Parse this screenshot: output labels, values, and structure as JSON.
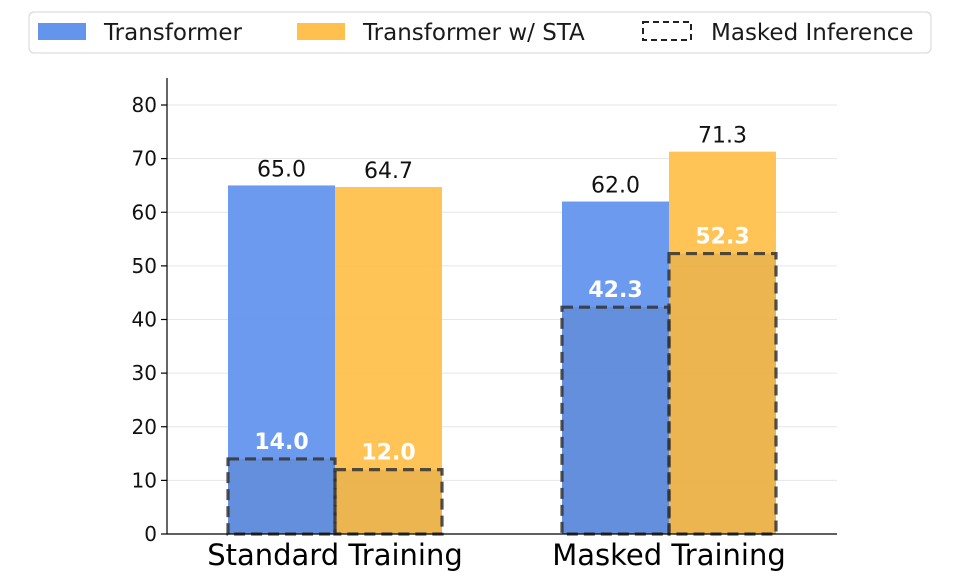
{
  "chart_data": {
    "type": "bar",
    "categories": [
      "Standard Training",
      "Masked Training"
    ],
    "series": [
      {
        "name": "Transformer",
        "color": "#6495ED",
        "values": [
          65.0,
          62.0
        ],
        "value_labels": [
          "65.0",
          "62.0"
        ]
      },
      {
        "name": "Transformer w/ STA",
        "color": "#FFC04D",
        "values": [
          64.7,
          71.3
        ],
        "value_labels": [
          "64.7",
          "71.3"
        ]
      }
    ],
    "masked_inference": {
      "name": "Masked Inference",
      "values": [
        [
          14.0,
          12.0
        ],
        [
          42.3,
          52.3
        ]
      ],
      "value_labels": [
        [
          "14.0",
          "12.0"
        ],
        [
          "42.3",
          "52.3"
        ]
      ]
    },
    "title": "",
    "xlabel": "",
    "ylabel": "",
    "ylim": [
      0,
      80
    ],
    "yticks": [
      "0",
      "10",
      "20",
      "30",
      "40",
      "50",
      "60",
      "70",
      "80"
    ],
    "grid": "horizontal",
    "legend_position": "top"
  }
}
